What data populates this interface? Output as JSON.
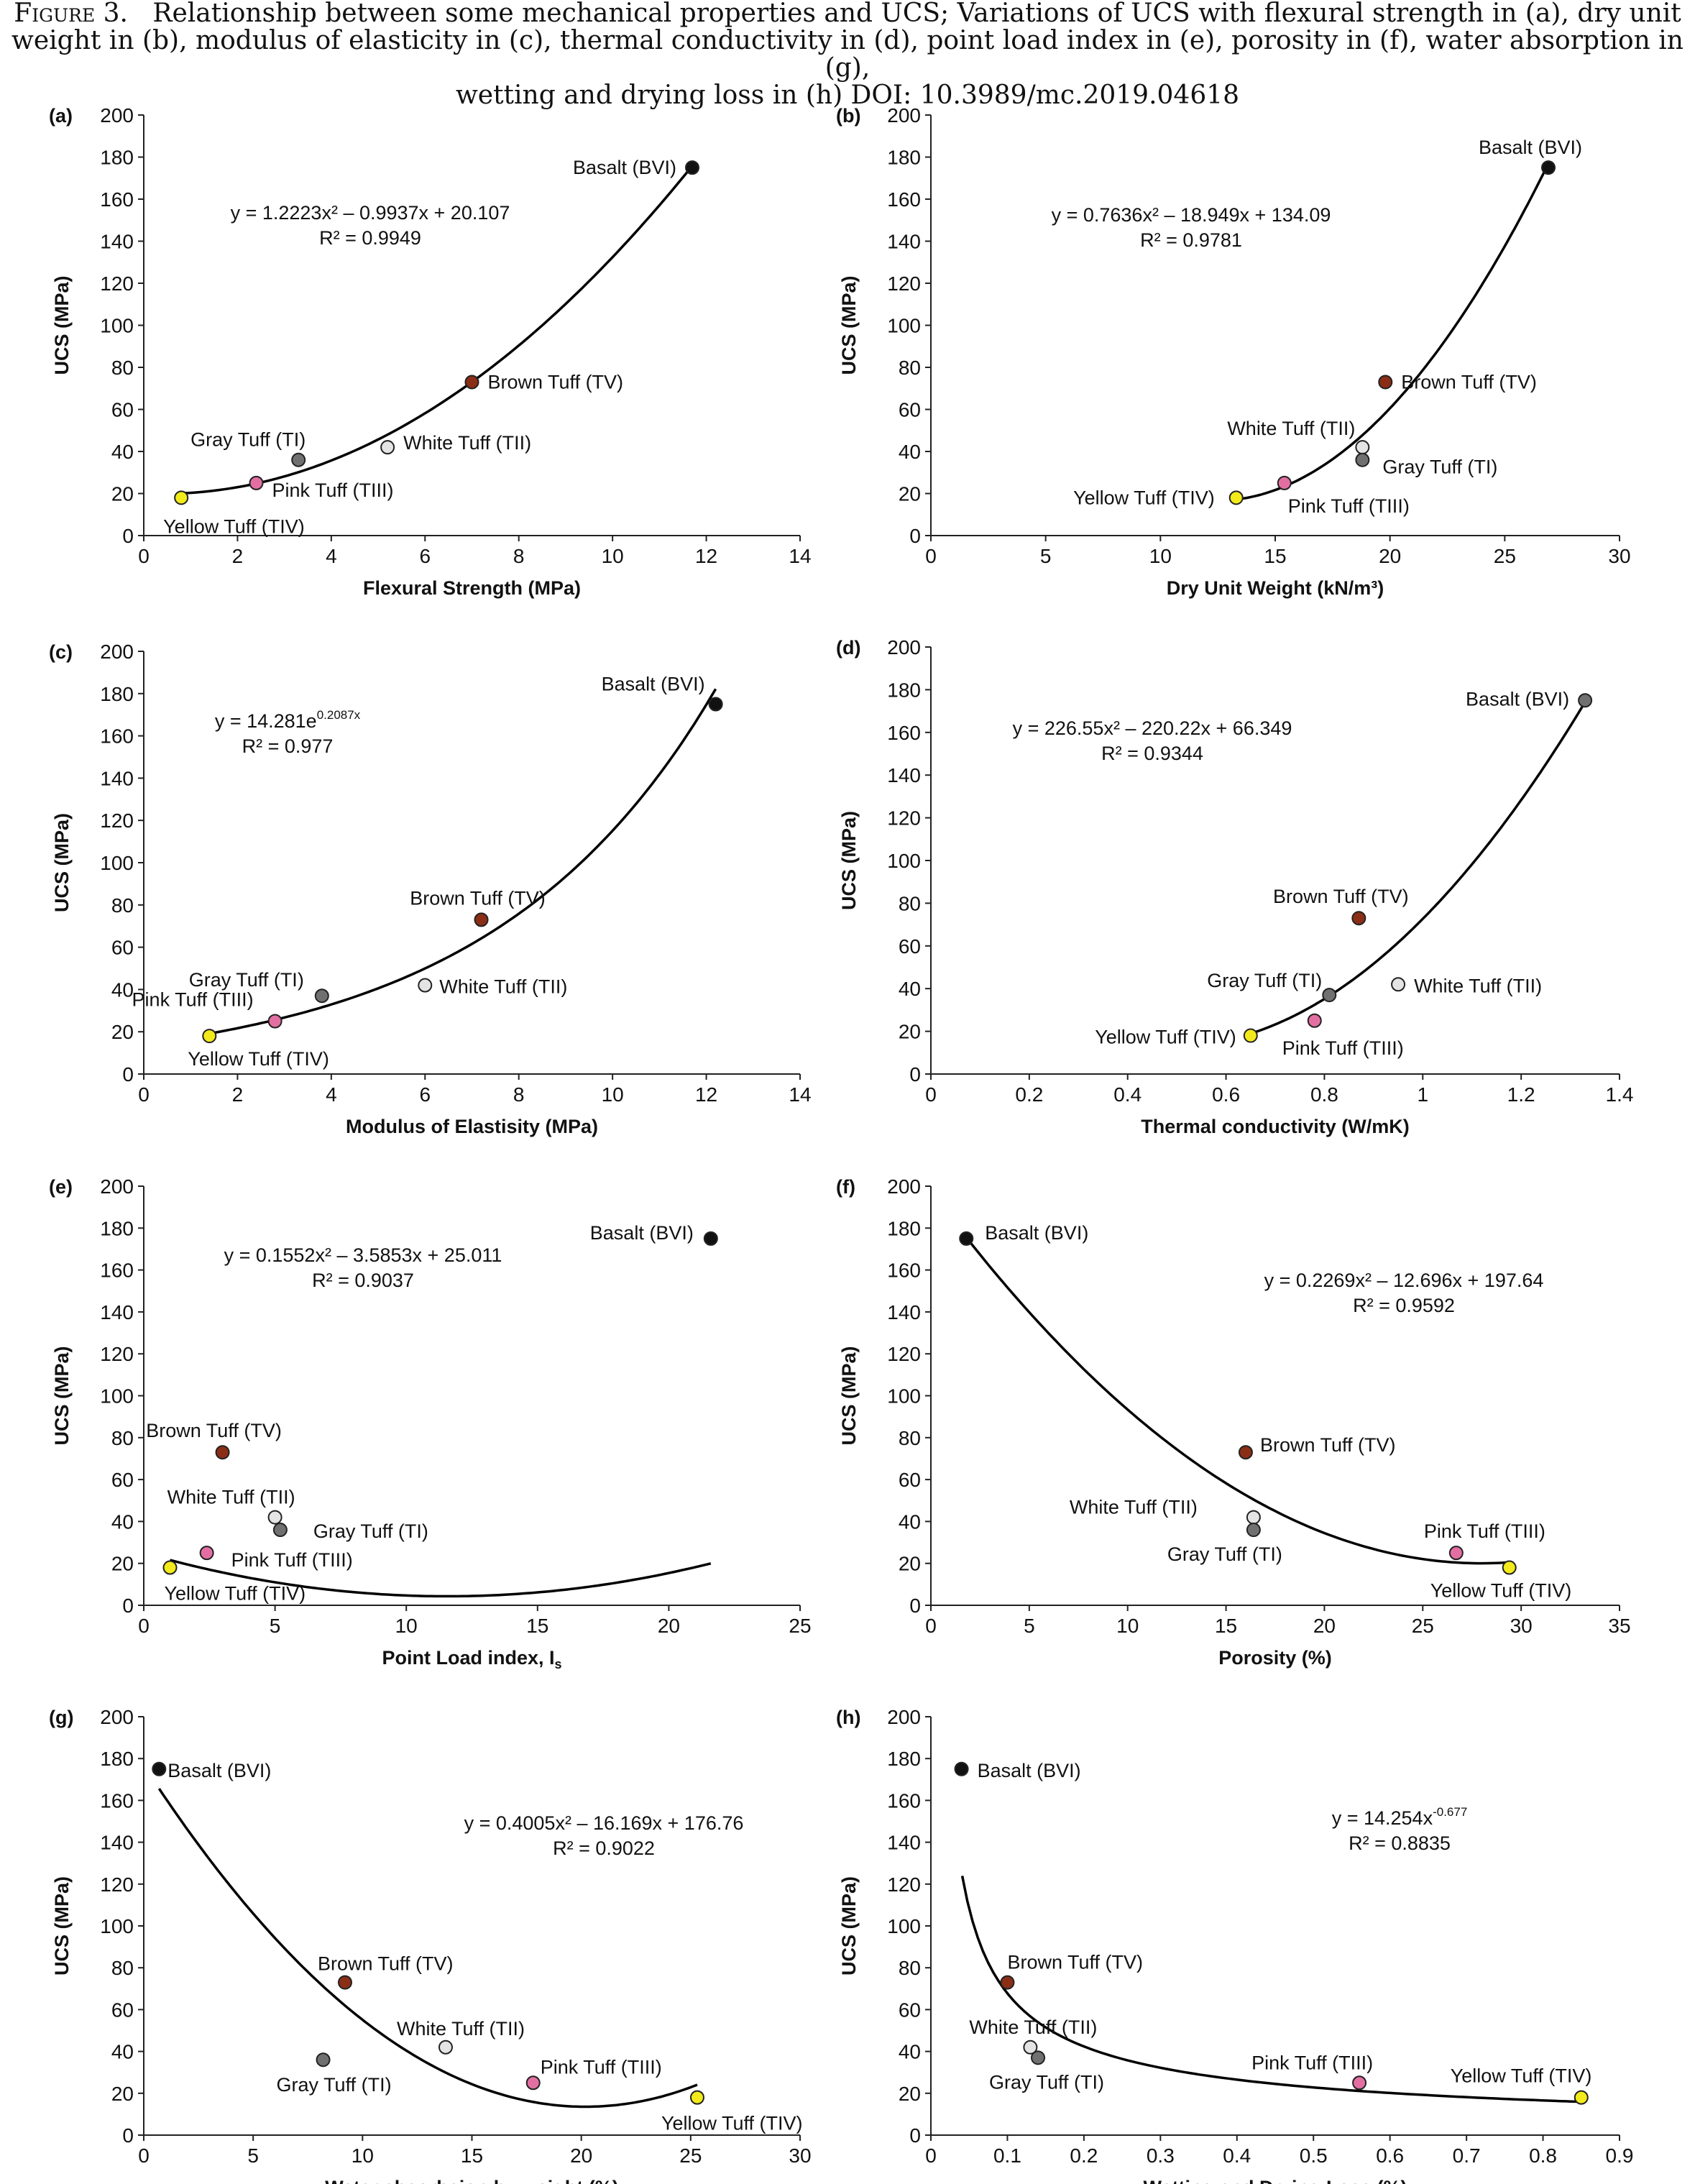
{
  "caption": {
    "label": "Figure 3.",
    "line1": "Relationship between some mechanical properties and UCS; Variations of UCS with flexural strength in (a), dry unit",
    "line2": "weight in (b), modulus of elasticity in (c), thermal conductivity in (d), point load index in (e), porosity in (f), water absorption in (g),",
    "line3": "wetting and drying loss in (h) DOI: 10.3989/mc.2019.04618"
  },
  "colors": {
    "basalt": "#111111",
    "brown": "#8b2e16",
    "white": "#e4e4e4",
    "gray": "#707070",
    "pink": "#e36fa2",
    "yellow": "#f3ea1b"
  },
  "chart_data": [
    {
      "panel": "(a)",
      "type": "scatter",
      "xlabel": "Flexural Strength (MPa)",
      "ylabel": "UCS (MPa)",
      "xlim": [
        0,
        14
      ],
      "xticks": [
        0,
        2,
        4,
        6,
        8,
        10,
        12,
        14
      ],
      "ylim": [
        0,
        200
      ],
      "yticks": [
        0,
        20,
        40,
        60,
        80,
        100,
        120,
        140,
        160,
        180,
        200
      ],
      "equation": "y = 1.2223x² – 0.9937x + 20.107",
      "r2": "R² = 0.9949",
      "fit": {
        "kind": "poly",
        "c": [
          20.107,
          -0.9937,
          1.2223
        ],
        "range": [
          0.8,
          11.7
        ]
      },
      "points": [
        {
          "name": "Basalt (BVI)",
          "x": 11.7,
          "y": 175,
          "color": "basalt"
        },
        {
          "name": "Brown Tuff (TV)",
          "x": 7.0,
          "y": 73,
          "color": "brown"
        },
        {
          "name": "White Tuff (TII)",
          "x": 5.2,
          "y": 42,
          "color": "white"
        },
        {
          "name": "Gray Tuff (TI)",
          "x": 3.3,
          "y": 36,
          "color": "gray"
        },
        {
          "name": "Pink Tuff (TIII)",
          "x": 2.4,
          "y": 25,
          "color": "pink"
        },
        {
          "name": "Yellow Tuff (TIV)",
          "x": 0.8,
          "y": 18,
          "color": "yellow"
        }
      ]
    },
    {
      "panel": "(b)",
      "type": "scatter",
      "xlabel": "Dry Unit Weight (kN/m³)",
      "ylabel": "UCS (MPa)",
      "xlim": [
        0,
        30
      ],
      "xticks": [
        0,
        5,
        10,
        15,
        20,
        25,
        30
      ],
      "ylim": [
        0,
        200
      ],
      "yticks": [
        0,
        20,
        40,
        60,
        80,
        100,
        120,
        140,
        160,
        180,
        200
      ],
      "equation": "y = 0.7636x² – 18.949x + 134.09",
      "r2": "R² = 0.9781",
      "fit": {
        "kind": "poly",
        "c": [
          134.09,
          -18.949,
          0.7636
        ],
        "range": [
          13.3,
          26.9
        ]
      },
      "points": [
        {
          "name": "Basalt (BVI)",
          "x": 26.9,
          "y": 175,
          "color": "basalt"
        },
        {
          "name": "Brown Tuff (TV)",
          "x": 19.8,
          "y": 73,
          "color": "brown"
        },
        {
          "name": "White Tuff (TII)",
          "x": 18.8,
          "y": 42,
          "color": "white"
        },
        {
          "name": "Gray Tuff (TI)",
          "x": 18.8,
          "y": 36,
          "color": "gray"
        },
        {
          "name": "Pink Tuff (TIII)",
          "x": 15.4,
          "y": 25,
          "color": "pink"
        },
        {
          "name": "Yellow Tuff (TIV)",
          "x": 13.3,
          "y": 18,
          "color": "yellow"
        }
      ]
    },
    {
      "panel": "(c)",
      "type": "scatter",
      "xlabel": "Modulus of Elastisity (MPa)",
      "ylabel": "UCS (MPa)",
      "xlim": [
        0,
        14
      ],
      "xticks": [
        0,
        2,
        4,
        6,
        8,
        10,
        12,
        14
      ],
      "ylim": [
        0,
        200
      ],
      "yticks": [
        0,
        20,
        40,
        60,
        80,
        100,
        120,
        140,
        160,
        180,
        200
      ],
      "equation": "y = 14.281e^0.2087x",
      "equation_base": "y = 14.281e",
      "equation_sup": "0.2087x",
      "r2": "R² = 0.977",
      "fit": {
        "kind": "exp",
        "a": 14.281,
        "b": 0.2087,
        "range": [
          1.4,
          12.2
        ]
      },
      "points": [
        {
          "name": "Basalt (BVI)",
          "x": 12.2,
          "y": 175,
          "color": "basalt"
        },
        {
          "name": "Brown Tuff (TV)",
          "x": 7.2,
          "y": 73,
          "color": "brown"
        },
        {
          "name": "White Tuff (TII)",
          "x": 6.0,
          "y": 42,
          "color": "white"
        },
        {
          "name": "Gray Tuff (TI)",
          "x": 3.8,
          "y": 37,
          "color": "gray"
        },
        {
          "name": "Pink Tuff (TIII)",
          "x": 2.8,
          "y": 25,
          "color": "pink"
        },
        {
          "name": "Yellow Tuff (TIV)",
          "x": 1.4,
          "y": 18,
          "color": "yellow"
        }
      ]
    },
    {
      "panel": "(d)",
      "type": "scatter",
      "xlabel": "Thermal conductivity (W/mK)",
      "ylabel": "UCS (MPa)",
      "xlim": [
        0,
        1.4
      ],
      "xticks": [
        0,
        0.2,
        0.4,
        0.6,
        0.8,
        1,
        1.2,
        1.4
      ],
      "ylim": [
        0,
        200
      ],
      "yticks": [
        0,
        20,
        40,
        60,
        80,
        100,
        120,
        140,
        160,
        180,
        200
      ],
      "equation": "y = 226.55x² – 220.22x + 66.349",
      "r2": "R² = 0.9344",
      "fit": {
        "kind": "poly",
        "c": [
          66.349,
          -220.22,
          226.55
        ],
        "range": [
          0.65,
          1.33
        ]
      },
      "points": [
        {
          "name": "Basalt (BVI)",
          "x": 1.33,
          "y": 175,
          "color": "gray"
        },
        {
          "name": "Brown Tuff (TV)",
          "x": 0.87,
          "y": 73,
          "color": "brown"
        },
        {
          "name": "White Tuff (TII)",
          "x": 0.95,
          "y": 42,
          "color": "white"
        },
        {
          "name": "Gray Tuff (TI)",
          "x": 0.81,
          "y": 37,
          "color": "gray"
        },
        {
          "name": "Pink Tuff (TIII)",
          "x": 0.78,
          "y": 25,
          "color": "pink"
        },
        {
          "name": "Yellow Tuff (TIV)",
          "x": 0.65,
          "y": 18,
          "color": "yellow"
        }
      ]
    },
    {
      "panel": "(e)",
      "type": "scatter",
      "xlabel": "Point Load index, I",
      "xlabel_sub": "s",
      "ylabel": "UCS (MPa)",
      "xlim": [
        0,
        25
      ],
      "xticks": [
        0,
        5,
        10,
        15,
        20,
        25
      ],
      "ylim": [
        0,
        200
      ],
      "yticks": [
        0,
        20,
        40,
        60,
        80,
        100,
        120,
        140,
        160,
        180,
        200
      ],
      "equation": "y = 0.1552x² – 3.5853x + 25.011",
      "r2": "R² = 0.9037",
      "fit": {
        "kind": "poly",
        "c": [
          25.011,
          -3.5853,
          0.1552
        ],
        "range": [
          1.0,
          21.6
        ]
      },
      "points": [
        {
          "name": "Basalt (BVI)",
          "x": 21.6,
          "y": 175,
          "color": "basalt"
        },
        {
          "name": "Brown Tuff (TV)",
          "x": 3.0,
          "y": 73,
          "color": "brown"
        },
        {
          "name": "White Tuff (TII)",
          "x": 5.0,
          "y": 42,
          "color": "white"
        },
        {
          "name": "Gray Tuff (TI)",
          "x": 5.2,
          "y": 36,
          "color": "gray"
        },
        {
          "name": "Pink Tuff (TIII)",
          "x": 2.4,
          "y": 25,
          "color": "pink"
        },
        {
          "name": "Yellow Tuff (TIV)",
          "x": 1.0,
          "y": 18,
          "color": "yellow"
        }
      ]
    },
    {
      "panel": "(f)",
      "type": "scatter",
      "xlabel": "Porosity (%)",
      "ylabel": "UCS (MPa)",
      "xlim": [
        0,
        35
      ],
      "xticks": [
        0,
        5,
        10,
        15,
        20,
        25,
        30,
        35
      ],
      "ylim": [
        0,
        200
      ],
      "yticks": [
        0,
        20,
        40,
        60,
        80,
        100,
        120,
        140,
        160,
        180,
        200
      ],
      "equation": "y = 0.2269x² – 12.696x + 197.64",
      "r2": "R² = 0.9592",
      "fit": {
        "kind": "poly",
        "c": [
          197.64,
          -12.696,
          0.2269
        ],
        "range": [
          1.8,
          29.4
        ]
      },
      "points": [
        {
          "name": "Basalt (BVI)",
          "x": 1.8,
          "y": 175,
          "color": "basalt"
        },
        {
          "name": "Brown Tuff (TV)",
          "x": 16.0,
          "y": 73,
          "color": "brown"
        },
        {
          "name": "White Tuff (TII)",
          "x": 16.4,
          "y": 42,
          "color": "white"
        },
        {
          "name": "Gray Tuff (TI)",
          "x": 16.4,
          "y": 36,
          "color": "gray"
        },
        {
          "name": "Pink Tuff (TIII)",
          "x": 26.7,
          "y": 25,
          "color": "pink"
        },
        {
          "name": "Yellow Tuff (TIV)",
          "x": 29.4,
          "y": 18,
          "color": "yellow"
        }
      ]
    },
    {
      "panel": "(g)",
      "type": "scatter",
      "xlabel": "Water absorbsion by weight (%)",
      "ylabel": "UCS (MPa)",
      "xlim": [
        0,
        30
      ],
      "xticks": [
        0,
        5,
        10,
        15,
        20,
        25,
        30
      ],
      "ylim": [
        0,
        200
      ],
      "yticks": [
        0,
        20,
        40,
        60,
        80,
        100,
        120,
        140,
        160,
        180,
        200
      ],
      "equation": "y = 0.4005x² – 16.169x + 176.76",
      "r2": "R² = 0.9022",
      "fit": {
        "kind": "poly",
        "c": [
          176.76,
          -16.169,
          0.4005
        ],
        "range": [
          0.7,
          25.3
        ]
      },
      "points": [
        {
          "name": "Basalt (BVI)",
          "x": 0.7,
          "y": 175,
          "color": "basalt"
        },
        {
          "name": "Brown Tuff (TV)",
          "x": 9.2,
          "y": 73,
          "color": "brown"
        },
        {
          "name": "White Tuff (TII)",
          "x": 13.8,
          "y": 42,
          "color": "white"
        },
        {
          "name": "Gray Tuff (TI)",
          "x": 8.2,
          "y": 36,
          "color": "gray"
        },
        {
          "name": "Pink Tuff (TIII)",
          "x": 17.8,
          "y": 25,
          "color": "pink"
        },
        {
          "name": "Yellow Tuff (TIV)",
          "x": 25.3,
          "y": 18,
          "color": "yellow"
        }
      ]
    },
    {
      "panel": "(h)",
      "type": "scatter",
      "xlabel": "Wetting and Drying Loss (%)",
      "ylabel": "UCS (MPa)",
      "xlim": [
        0,
        0.9
      ],
      "xticks": [
        0,
        0.1,
        0.2,
        0.3,
        0.4,
        0.5,
        0.6,
        0.7,
        0.8,
        0.9
      ],
      "ylim": [
        0,
        200
      ],
      "yticks": [
        0,
        20,
        40,
        60,
        80,
        100,
        120,
        140,
        160,
        180,
        200
      ],
      "equation": "y = 14.254x^-0.677",
      "equation_base": "y = 14.254x",
      "equation_sup": "-0.677",
      "r2": "R² = 0.8835",
      "fit": {
        "kind": "pow",
        "a": 14.254,
        "b": -0.677,
        "range": [
          0.041,
          0.85
        ]
      },
      "points": [
        {
          "name": "Basalt (BVI)",
          "x": 0.04,
          "y": 175,
          "color": "basalt"
        },
        {
          "name": "Brown Tuff (TV)",
          "x": 0.1,
          "y": 73,
          "color": "brown"
        },
        {
          "name": "White Tuff (TII)",
          "x": 0.13,
          "y": 42,
          "color": "white"
        },
        {
          "name": "Gray Tuff (TI)",
          "x": 0.14,
          "y": 37,
          "color": "gray"
        },
        {
          "name": "Pink Tuff (TIII)",
          "x": 0.56,
          "y": 25,
          "color": "pink"
        },
        {
          "name": "Yellow Tuff (TIV)",
          "x": 0.85,
          "y": 18,
          "color": "yellow"
        }
      ]
    }
  ]
}
